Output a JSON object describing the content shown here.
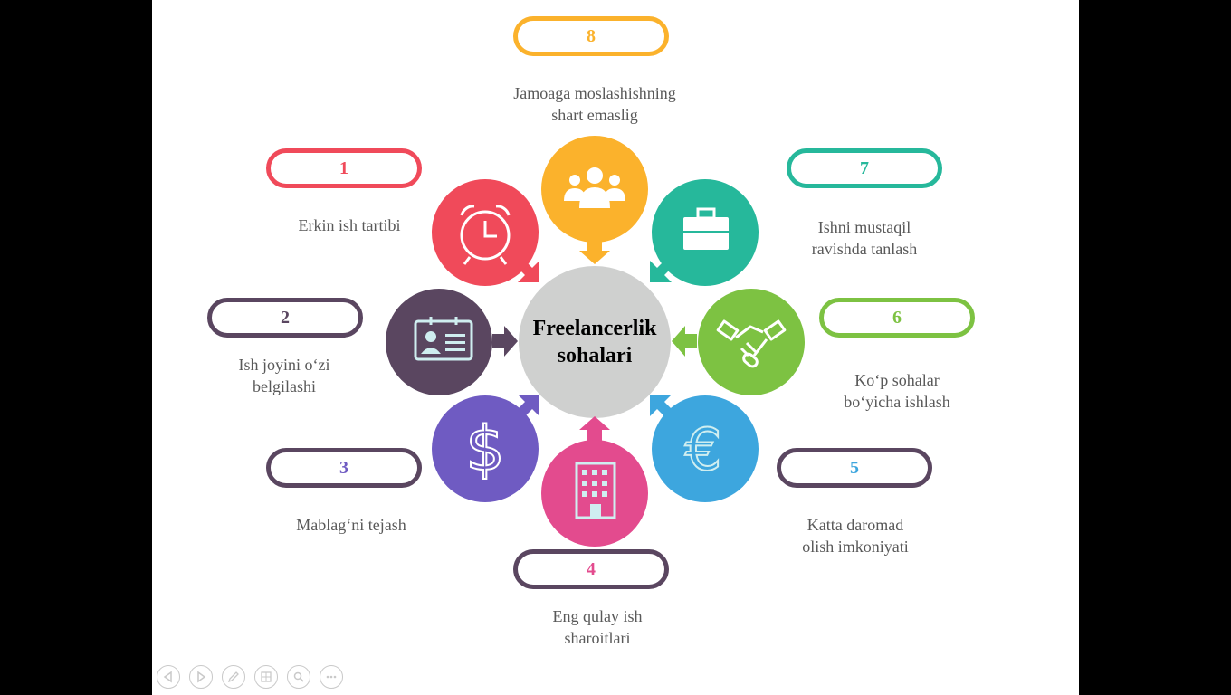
{
  "center": {
    "line1": "Freelancerlik",
    "line2": "sohalari"
  },
  "items": [
    {
      "num": "1",
      "line1": "Erkin ish tartibi",
      "line2": "",
      "color": "#f04a5a",
      "border": "#f04a5a",
      "icon": "alarm-clock-icon"
    },
    {
      "num": "2",
      "line1": "Ish joyini o‘zi",
      "line2": "belgilashi",
      "color": "#5a4660",
      "border": "#5a4660",
      "icon": "id-card-icon"
    },
    {
      "num": "3",
      "line1": "Mablag‘ni tejash",
      "line2": "",
      "color": "#6f5bc2",
      "border": "#5a4660",
      "icon": "dollar-icon"
    },
    {
      "num": "4",
      "line1": "Eng qulay ish",
      "line2": "sharoitlari",
      "color": "#e34b8e",
      "border": "#5a4660",
      "icon": "building-icon"
    },
    {
      "num": "5",
      "line1": "Katta daromad",
      "line2": "olish imkoniyati",
      "color": "#3da6de",
      "border": "#5a4660",
      "icon": "euro-icon"
    },
    {
      "num": "6",
      "line1": "Ko‘p sohalar",
      "line2": "bo‘yicha ishlash",
      "color": "#7dc242",
      "border": "#7dc242",
      "icon": "handshake-icon"
    },
    {
      "num": "7",
      "line1": "Ishni mustaqil",
      "line2": "ravishda tanlash",
      "color": "#26b89b",
      "border": "#26b89b",
      "icon": "briefcase-icon"
    },
    {
      "num": "8",
      "line1": "Jamoaga moslashishning",
      "line2": "shart emaslig",
      "color": "#fbb22c",
      "border": "#fbb22c",
      "icon": "team-icon"
    }
  ],
  "controls": [
    "previous-icon",
    "next-icon",
    "pen-icon",
    "slides-icon",
    "zoom-icon",
    "more-icon"
  ]
}
